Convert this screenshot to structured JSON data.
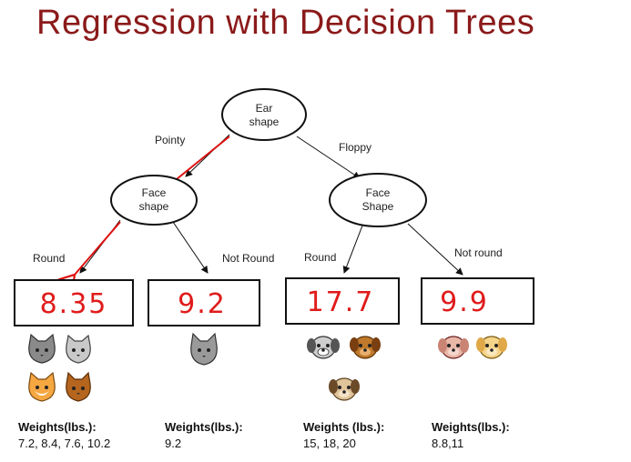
{
  "title": "Regression with Decision Trees",
  "root": {
    "line1": "Ear",
    "line2": "shape"
  },
  "left_node": {
    "line1": "Face",
    "line2": "shape"
  },
  "right_node": {
    "line1": "Face",
    "line2": "Shape"
  },
  "edges": {
    "pointy": "Pointy",
    "floppy": "Floppy",
    "left_round": "Round",
    "left_not_round": "Not Round",
    "right_round": "Round",
    "right_not_round": "Not round"
  },
  "leaves": [
    {
      "value": "8.35",
      "weights_title": "Weights(lbs.):",
      "weights": "7.2, 8.4, 7.6, 10.2"
    },
    {
      "value": "9.2",
      "weights_title": "Weights(lbs.):",
      "weights": "9.2"
    },
    {
      "value": "17.7",
      "weights_title": "Weights (lbs.):",
      "weights": "15,  18, 20"
    },
    {
      "value": "9.9",
      "weights_title": "Weights(lbs.):",
      "weights": "8.8,11"
    }
  ],
  "icons": {
    "leaf1": [
      "grey-cat-icon",
      "grey-cat-icon",
      "orange-cat-icon",
      "brown-cat-icon"
    ],
    "leaf2": [
      "grey-cat-icon"
    ],
    "leaf3": [
      "grey-dog-icon",
      "brown-dog-icon",
      "tan-dog-icon"
    ],
    "leaf4": [
      "pink-dog-icon",
      "yellow-dog-icon"
    ]
  },
  "colors": {
    "title": "#8b1a1a",
    "highlight_path": "#dd1111",
    "leaf_value": "#e01b1b"
  }
}
